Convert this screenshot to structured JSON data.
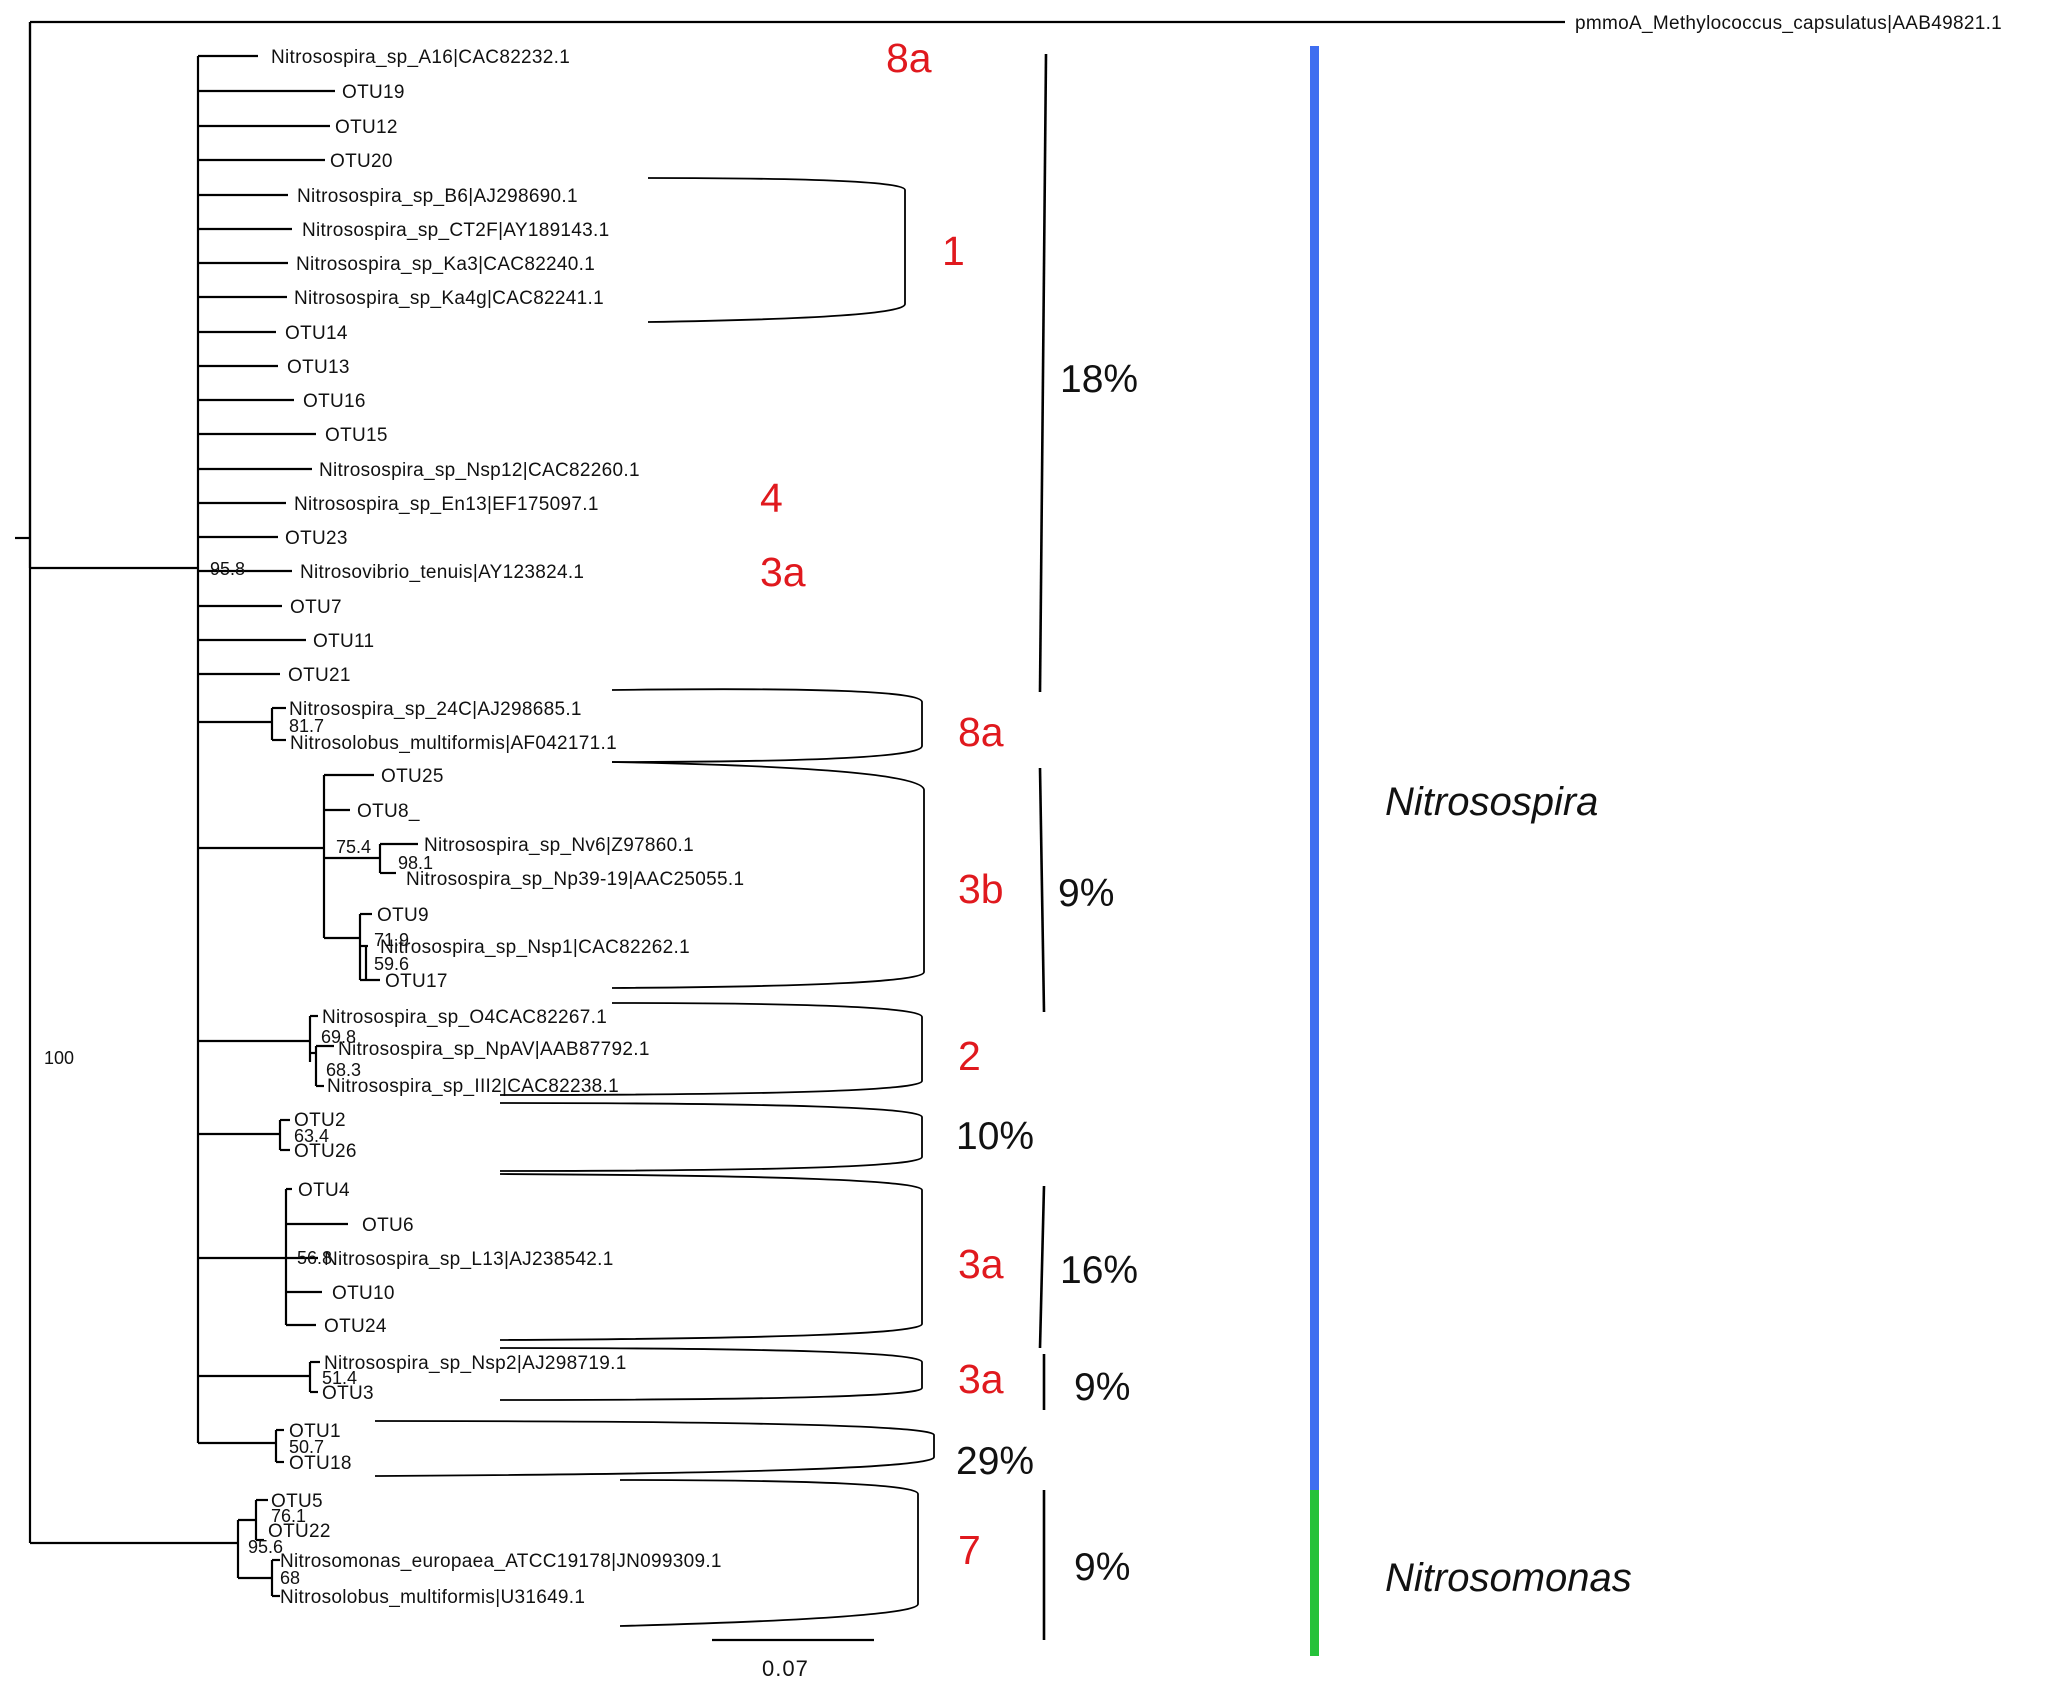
{
  "outgroup": "pmmoA_Methylococcus_capsulatus|AAB49821.1",
  "leaves": [
    "Nitrosospira_sp_A16|CAC82232.1",
    "OTU19",
    "OTU12",
    "OTU20",
    "Nitrosospira_sp_B6|AJ298690.1",
    "Nitrosospira_sp_CT2F|AY189143.1",
    "Nitrosospira_sp_Ka3|CAC82240.1",
    "Nitrosospira_sp_Ka4g|CAC82241.1",
    "OTU14",
    "OTU13",
    "OTU16",
    "OTU15",
    "Nitrosospira_sp_Nsp12|CAC82260.1",
    "Nitrosospira_sp_En13|EF175097.1",
    "OTU23",
    "Nitrosovibrio_tenuis|AY123824.1",
    "OTU7",
    "OTU11",
    "OTU21",
    "Nitrosospira_sp_24C|AJ298685.1",
    "Nitrosolobus_multiformis|AF042171.1",
    "OTU25",
    "OTU8_",
    "Nitrosospira_sp_Nv6|Z97860.1",
    "Nitrosospira_sp_Np39-19|AAC25055.1",
    "OTU9",
    "Nitrosospira_sp_Nsp1|CAC82262.1",
    "OTU17",
    "Nitrosospira_sp_O4CAC82267.1",
    "Nitrosospira_sp_NpAV|AAB87792.1",
    "Nitrosospira_sp_III2|CAC82238.1",
    "OTU2",
    "OTU26",
    "OTU4",
    "OTU6",
    "Nitrosospira_sp_L13|AJ238542.1",
    "OTU10",
    "OTU24",
    "Nitrosospira_sp_Nsp2|AJ298719.1",
    "OTU3",
    "OTU1",
    "OTU18",
    "OTU5",
    "OTU22",
    "Nitrosomonas_europaea_ATCC19178|JN099309.1",
    "Nitrosolobus_multiformis|U31649.1"
  ],
  "support_values": [
    "100",
    "95.8",
    "81.7",
    "75.4",
    "98.1",
    "71.9",
    "59.6",
    "69.8",
    "68.3",
    "63.4",
    "56.8",
    "51.4",
    "50.7",
    "76.1",
    "95.6",
    "68"
  ],
  "cluster_labels": [
    "8a",
    "1",
    "4",
    "3a",
    "8a",
    "3b",
    "2",
    "3a",
    "3a",
    "7"
  ],
  "percent_labels": [
    "18%",
    "9%",
    "10%",
    "16%",
    "9%",
    "29%",
    "9%"
  ],
  "genus_labels": [
    "Nitrosospira",
    "Nitrosomonas"
  ],
  "genus_colors": {
    "Nitrosospira": "#3f6ef0",
    "Nitrosomonas": "#25c23a"
  },
  "scale_bar": "0.07"
}
